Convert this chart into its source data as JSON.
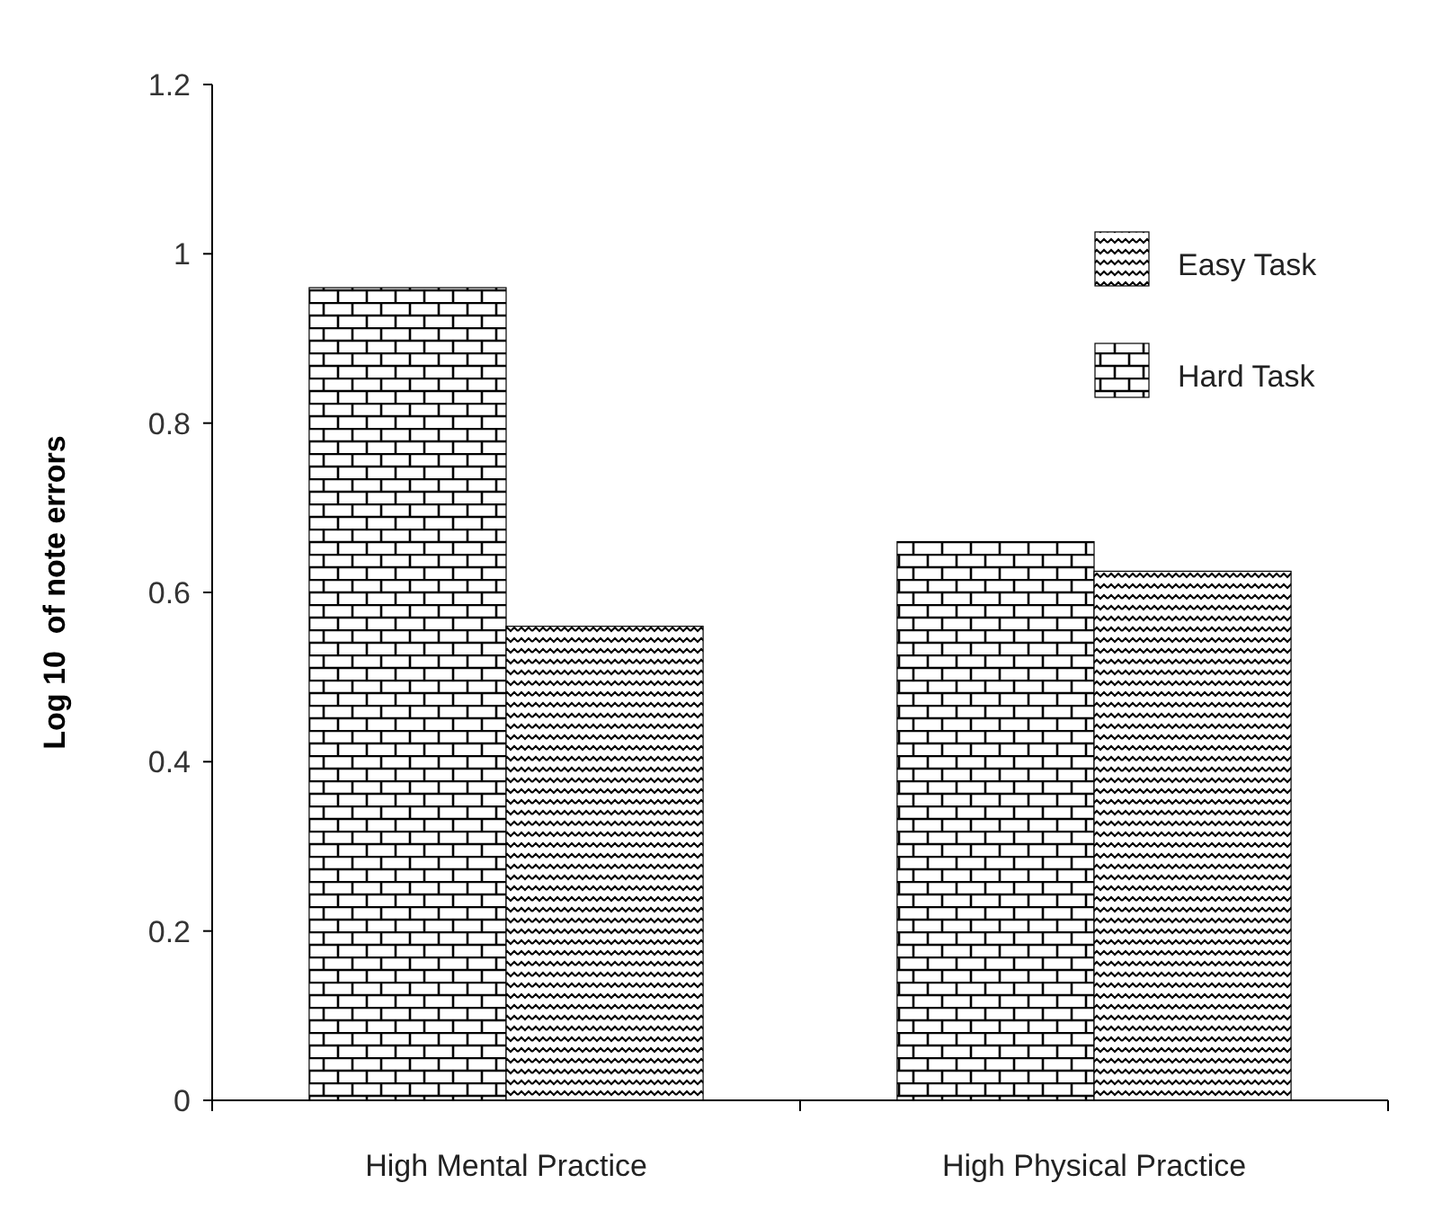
{
  "chart_data": {
    "type": "bar",
    "ylabel": "Log 10  of note errors",
    "categories": [
      "High Mental Practice",
      "High Physical Practice"
    ],
    "series": [
      {
        "name": "Hard Task",
        "color": "#000000",
        "values": [
          0.96,
          0.66
        ]
      },
      {
        "name": "Easy Task",
        "color": "#000000",
        "values": [
          0.56,
          0.625
        ]
      }
    ],
    "ylim": [
      0,
      1.2
    ],
    "yticks": [
      0,
      0.2,
      0.4,
      0.6,
      0.8,
      1,
      1.2
    ],
    "grid": false,
    "legend": "top right"
  }
}
